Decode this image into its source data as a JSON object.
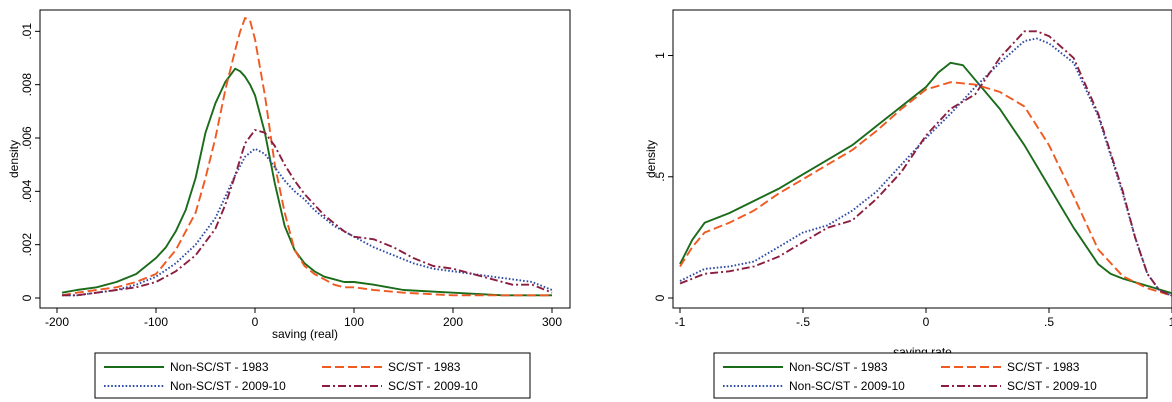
{
  "chart_data": [
    {
      "type": "line",
      "xlabel": "saving (real)",
      "ylabel": "density",
      "xlim": [
        -200,
        300
      ],
      "ylim": [
        0,
        0.0105
      ],
      "xticks": [
        -200,
        -100,
        0,
        100,
        200,
        300
      ],
      "xtick_labels": [
        "-200",
        "-100",
        "0",
        "100",
        "200",
        "300"
      ],
      "yticks": [
        0,
        0.002,
        0.004,
        0.006,
        0.008,
        0.01
      ],
      "ytick_labels": [
        "0",
        ".002",
        ".004",
        ".006",
        ".008",
        ".01"
      ],
      "legend": "bottom",
      "series": [
        {
          "name": "Non-SC/ST - 1983",
          "color": "#1a6b1a",
          "dash": "solid",
          "x": [
            -195,
            -180,
            -160,
            -140,
            -120,
            -100,
            -90,
            -80,
            -70,
            -60,
            -50,
            -40,
            -30,
            -20,
            -15,
            -10,
            -5,
            0,
            10,
            20,
            30,
            40,
            50,
            60,
            70,
            80,
            90,
            100,
            120,
            150,
            200,
            250,
            300
          ],
          "y": [
            0.0002,
            0.0003,
            0.0004,
            0.0006,
            0.0009,
            0.0015,
            0.0019,
            0.0025,
            0.0033,
            0.0045,
            0.0062,
            0.0073,
            0.0081,
            0.0086,
            0.0085,
            0.0083,
            0.008,
            0.0076,
            0.0062,
            0.0043,
            0.0027,
            0.0018,
            0.0013,
            0.001,
            0.0008,
            0.0007,
            0.0006,
            0.0006,
            0.0005,
            0.0003,
            0.0002,
            0.0001,
            0.0001
          ]
        },
        {
          "name": "SC/ST - 1983",
          "color": "#f05a22",
          "dash": "dashed",
          "x": [
            -195,
            -180,
            -160,
            -140,
            -120,
            -100,
            -80,
            -60,
            -50,
            -40,
            -30,
            -20,
            -15,
            -10,
            -5,
            0,
            10,
            20,
            30,
            40,
            50,
            60,
            70,
            80,
            90,
            100,
            120,
            150,
            200,
            250,
            300
          ],
          "y": [
            0.0001,
            0.0002,
            0.0003,
            0.0004,
            0.0006,
            0.0009,
            0.0018,
            0.0032,
            0.0045,
            0.006,
            0.0078,
            0.0093,
            0.01,
            0.0105,
            0.0104,
            0.0097,
            0.0076,
            0.005,
            0.0032,
            0.0018,
            0.0012,
            0.0009,
            0.0007,
            0.0005,
            0.0004,
            0.0004,
            0.0003,
            0.0002,
            0.0001,
            0.0001,
            0.0001
          ]
        },
        {
          "name": "Non-SC/ST - 2009-10",
          "color": "#2e4aa6",
          "dash": "dotted",
          "x": [
            -195,
            -180,
            -160,
            -140,
            -120,
            -100,
            -80,
            -60,
            -40,
            -30,
            -20,
            -10,
            0,
            10,
            20,
            30,
            40,
            50,
            60,
            70,
            80,
            90,
            100,
            120,
            140,
            160,
            180,
            200,
            220,
            240,
            260,
            280,
            300
          ],
          "y": [
            0.0001,
            0.0001,
            0.0002,
            0.0003,
            0.0005,
            0.0008,
            0.0013,
            0.002,
            0.003,
            0.0038,
            0.0046,
            0.0053,
            0.0056,
            0.0054,
            0.0049,
            0.0044,
            0.004,
            0.0037,
            0.0033,
            0.003,
            0.0027,
            0.0025,
            0.0023,
            0.0019,
            0.0016,
            0.0013,
            0.0011,
            0.001,
            0.0009,
            0.0008,
            0.0007,
            0.0006,
            0.0003
          ]
        },
        {
          "name": "SC/ST - 2009-10",
          "color": "#8b1e3f",
          "dash": "dashdot",
          "x": [
            -195,
            -180,
            -160,
            -140,
            -120,
            -100,
            -80,
            -60,
            -40,
            -30,
            -20,
            -10,
            0,
            10,
            20,
            30,
            40,
            50,
            60,
            70,
            80,
            90,
            100,
            120,
            140,
            160,
            180,
            200,
            220,
            240,
            260,
            280,
            300
          ],
          "y": [
            0.0001,
            0.0001,
            0.0002,
            0.0003,
            0.0004,
            0.0006,
            0.001,
            0.0016,
            0.0026,
            0.0035,
            0.0046,
            0.0058,
            0.0063,
            0.0062,
            0.0057,
            0.005,
            0.0044,
            0.0039,
            0.0035,
            0.0031,
            0.0028,
            0.0025,
            0.0023,
            0.0022,
            0.0019,
            0.0015,
            0.0012,
            0.0011,
            0.0009,
            0.0007,
            0.0005,
            0.0005,
            0.0002
          ]
        }
      ]
    },
    {
      "type": "line",
      "xlabel": "saving rate",
      "ylabel": "density",
      "xlim": [
        -1,
        1
      ],
      "ylim": [
        0,
        1.13
      ],
      "xticks": [
        -1,
        -0.5,
        0,
        0.5,
        1
      ],
      "xtick_labels": [
        "-1",
        "-.5",
        "0",
        ".5",
        "1"
      ],
      "yticks": [
        0,
        0.5,
        1
      ],
      "ytick_labels": [
        "0",
        ".5",
        "1"
      ],
      "legend": "bottom",
      "series": [
        {
          "name": "Non-SC/ST - 1983",
          "color": "#1a6b1a",
          "dash": "solid",
          "x": [
            -1,
            -0.95,
            -0.9,
            -0.8,
            -0.7,
            -0.6,
            -0.5,
            -0.4,
            -0.3,
            -0.2,
            -0.1,
            0,
            0.05,
            0.1,
            0.15,
            0.2,
            0.3,
            0.4,
            0.5,
            0.6,
            0.7,
            0.75,
            0.8,
            0.9,
            1
          ],
          "y": [
            0.14,
            0.24,
            0.31,
            0.35,
            0.4,
            0.45,
            0.51,
            0.57,
            0.63,
            0.71,
            0.79,
            0.87,
            0.93,
            0.97,
            0.96,
            0.9,
            0.78,
            0.63,
            0.46,
            0.29,
            0.14,
            0.1,
            0.08,
            0.05,
            0.02
          ]
        },
        {
          "name": "SC/ST - 1983",
          "color": "#f05a22",
          "dash": "dashed",
          "x": [
            -1,
            -0.95,
            -0.9,
            -0.8,
            -0.7,
            -0.6,
            -0.5,
            -0.4,
            -0.3,
            -0.2,
            -0.1,
            0,
            0.1,
            0.2,
            0.3,
            0.4,
            0.5,
            0.6,
            0.7,
            0.8,
            0.9,
            1
          ],
          "y": [
            0.13,
            0.21,
            0.27,
            0.31,
            0.36,
            0.43,
            0.49,
            0.55,
            0.61,
            0.69,
            0.78,
            0.86,
            0.89,
            0.88,
            0.85,
            0.79,
            0.63,
            0.42,
            0.2,
            0.09,
            0.04,
            0.01
          ]
        },
        {
          "name": "Non-SC/ST - 2009-10",
          "color": "#2e4aa6",
          "dash": "dotted",
          "x": [
            -1,
            -0.9,
            -0.8,
            -0.7,
            -0.6,
            -0.5,
            -0.4,
            -0.3,
            -0.2,
            -0.1,
            0,
            0.1,
            0.2,
            0.3,
            0.4,
            0.45,
            0.5,
            0.6,
            0.7,
            0.8,
            0.85,
            0.9,
            0.95,
            1
          ],
          "y": [
            0.07,
            0.12,
            0.13,
            0.15,
            0.21,
            0.27,
            0.3,
            0.36,
            0.44,
            0.55,
            0.66,
            0.76,
            0.87,
            0.97,
            1.06,
            1.07,
            1.05,
            0.97,
            0.75,
            0.43,
            0.25,
            0.1,
            0.03,
            0.01
          ]
        },
        {
          "name": "SC/ST - 2009-10",
          "color": "#8b1e3f",
          "dash": "dashdot",
          "x": [
            -1,
            -0.9,
            -0.8,
            -0.7,
            -0.6,
            -0.5,
            -0.4,
            -0.3,
            -0.2,
            -0.1,
            0,
            0.1,
            0.2,
            0.3,
            0.4,
            0.45,
            0.5,
            0.6,
            0.7,
            0.8,
            0.85,
            0.9,
            0.95,
            1
          ],
          "y": [
            0.06,
            0.1,
            0.11,
            0.13,
            0.17,
            0.23,
            0.29,
            0.32,
            0.41,
            0.52,
            0.67,
            0.78,
            0.84,
            0.99,
            1.1,
            1.1,
            1.08,
            0.99,
            0.76,
            0.44,
            0.25,
            0.1,
            0.03,
            0.01
          ]
        }
      ]
    }
  ]
}
